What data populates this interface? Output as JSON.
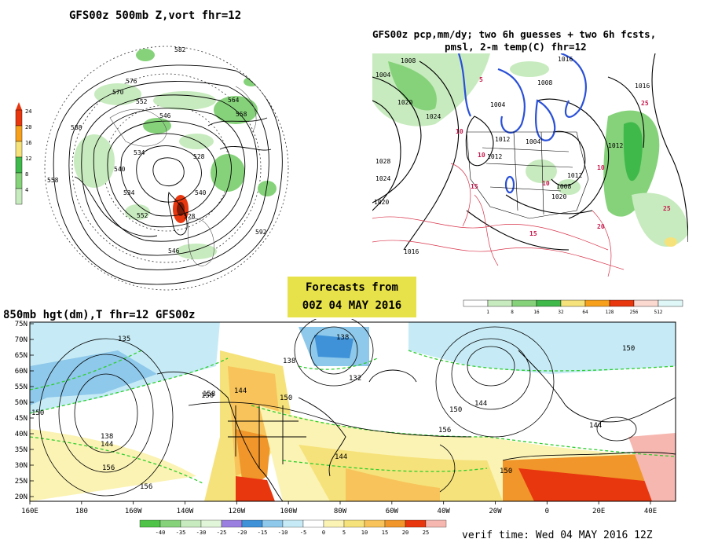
{
  "header": {
    "forecast_label_1": "Forecasts from",
    "forecast_label_2": "00Z 04 MAY 2016"
  },
  "panel_500mb": {
    "title": "GFS00z  500mb Z,vort    fhr=12",
    "legend_values": [
      "24",
      "20",
      "16",
      "12",
      "8",
      "4"
    ],
    "legend_colors": [
      "#e8360e",
      "#f7a01c",
      "#f6e27a",
      "#3fb94a",
      "#86d27a",
      "#c7ebbe"
    ],
    "contour_labels": [
      "582",
      "576",
      "570",
      "564",
      "558",
      "552",
      "546",
      "540",
      "534",
      "528",
      "588",
      "592",
      "558",
      "552",
      "546",
      "534",
      "540",
      "528"
    ]
  },
  "panel_precip": {
    "title_line_1": "GFS00z pcp,mm/dy; two 6h guesses + two 6h fcsts,",
    "title_line_2": "pmsl, 2-m temp(C)  fhr=12",
    "legend_values": [
      "1",
      "8",
      "16",
      "32",
      "64",
      "128",
      "256",
      "512"
    ],
    "legend_colors": [
      "#ffffff",
      "#c7ebbe",
      "#86d27a",
      "#3fb94a",
      "#f6e27a",
      "#f7a01c",
      "#e8360e",
      "#fbd8d0",
      "#e0f7f7"
    ],
    "pressure_labels": [
      "1008",
      "1004",
      "1020",
      "1024",
      "1028",
      "1024",
      "1020",
      "1016",
      "1012",
      "1008",
      "1004",
      "1012",
      "1016",
      "1012",
      "1008",
      "1004",
      "1020",
      "1012",
      "1016"
    ],
    "temp_labels": [
      "10",
      "15",
      "10",
      "10",
      "10",
      "15",
      "25",
      "20",
      "25",
      "5"
    ]
  },
  "panel_850mb": {
    "title": "850mb hgt(dm),T  fhr=12 GFS00z",
    "lat_labels": [
      "75N",
      "70N",
      "65N",
      "60N",
      "55N",
      "50N",
      "45N",
      "40N",
      "35N",
      "30N",
      "25N",
      "20N"
    ],
    "lon_labels": [
      "160E",
      "180",
      "160W",
      "140W",
      "120W",
      "100W",
      "80W",
      "60W",
      "40W",
      "20W",
      "0",
      "20E",
      "40E"
    ],
    "height_labels": [
      "135",
      "138",
      "150",
      "144",
      "150",
      "138",
      "132",
      "144",
      "150",
      "156",
      "150",
      "144",
      "156",
      "138",
      "144",
      "156",
      "158",
      "150",
      "144",
      "150"
    ],
    "legend_values": [
      "-40",
      "-35",
      "-30",
      "-25",
      "-20",
      "-15",
      "-10",
      "-5",
      "0",
      "5",
      "10",
      "15",
      "20",
      "25"
    ],
    "legend_colors": [
      "#4fc348",
      "#86d27a",
      "#c7ebbe",
      "#e1f5d8",
      "#9b7fe0",
      "#3f92d8",
      "#8ec8ea",
      "#c6ebf6",
      "#ffffff",
      "#fbf3b4",
      "#f6e27a",
      "#f7c35a",
      "#f0962a",
      "#e8360e",
      "#f6b7b0"
    ],
    "verif_time": "verif time: Wed 04 MAY 2016 12Z"
  }
}
